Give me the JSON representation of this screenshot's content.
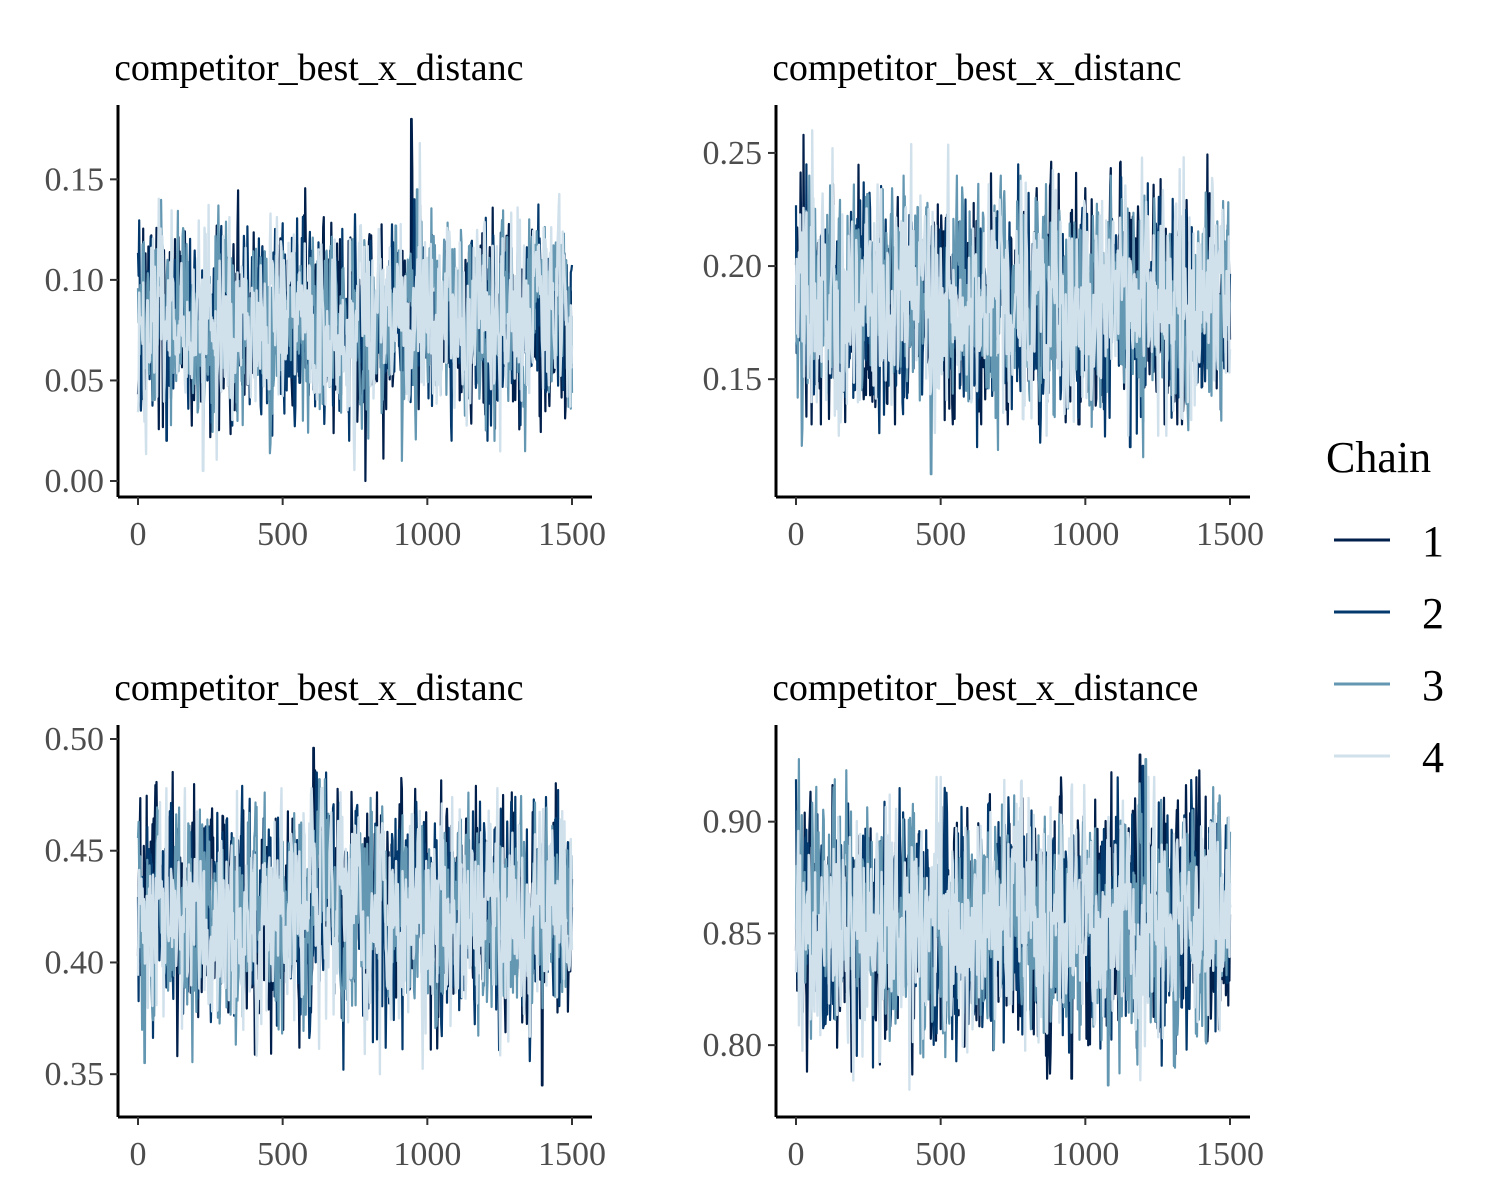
{
  "chart_data": [
    {
      "type": "line",
      "title": "competitor_best_x_distanc",
      "xlabel": "",
      "ylabel": "",
      "xlim": [
        0,
        1500
      ],
      "ylim": [
        0.0,
        0.18
      ],
      "xticks": [
        0,
        500,
        1000,
        1500
      ],
      "xtick_labels": [
        "0",
        "500",
        "1000",
        "1500"
      ],
      "yticks": [
        0.0,
        0.05,
        0.1,
        0.15
      ],
      "ytick_labels": [
        "0.00",
        "0.05",
        "0.10",
        "0.15"
      ],
      "trace_center": 0.08,
      "trace_spread": 0.022,
      "series": [
        {
          "name": "1",
          "min": 0.0,
          "max": 0.18
        },
        {
          "name": "2",
          "min": 0.02,
          "max": 0.14
        },
        {
          "name": "3",
          "min": 0.01,
          "max": 0.145
        },
        {
          "name": "4",
          "min": 0.005,
          "max": 0.168
        }
      ]
    },
    {
      "type": "line",
      "title": "competitor_best_x_distanc",
      "xlabel": "",
      "ylabel": "",
      "xlim": [
        0,
        1500
      ],
      "ylim": [
        0.105,
        0.265
      ],
      "xticks": [
        0,
        500,
        1000,
        1500
      ],
      "xtick_labels": [
        "0",
        "500",
        "1000",
        "1500"
      ],
      "yticks": [
        0.15,
        0.2,
        0.25
      ],
      "ytick_labels": [
        "0.15",
        "0.20",
        "0.25"
      ],
      "trace_center": 0.185,
      "trace_spread": 0.022,
      "series": [
        {
          "name": "1",
          "min": 0.13,
          "max": 0.258
        },
        {
          "name": "2",
          "min": 0.12,
          "max": 0.245
        },
        {
          "name": "3",
          "min": 0.108,
          "max": 0.24
        },
        {
          "name": "4",
          "min": 0.125,
          "max": 0.26
        }
      ]
    },
    {
      "type": "line",
      "title": "competitor_best_x_distanc",
      "xlabel": "",
      "ylabel": "",
      "xlim": [
        0,
        1500
      ],
      "ylim": [
        0.338,
        0.5
      ],
      "xticks": [
        0,
        500,
        1000,
        1500
      ],
      "xtick_labels": [
        "0",
        "500",
        "1000",
        "1500"
      ],
      "yticks": [
        0.35,
        0.4,
        0.45,
        0.5
      ],
      "ytick_labels": [
        "0.35",
        "0.40",
        "0.45",
        "0.50"
      ],
      "trace_center": 0.423,
      "trace_spread": 0.022,
      "series": [
        {
          "name": "1",
          "min": 0.345,
          "max": 0.496
        },
        {
          "name": "2",
          "min": 0.352,
          "max": 0.485
        },
        {
          "name": "3",
          "min": 0.355,
          "max": 0.482
        },
        {
          "name": "4",
          "min": 0.35,
          "max": 0.478
        }
      ]
    },
    {
      "type": "line",
      "title": "competitor_best_x_distance",
      "xlabel": "",
      "ylabel": "",
      "xlim": [
        0,
        1500
      ],
      "ylim": [
        0.775,
        0.937
      ],
      "xticks": [
        0,
        500,
        1000,
        1500
      ],
      "xtick_labels": [
        "0",
        "500",
        "1000",
        "1500"
      ],
      "yticks": [
        0.8,
        0.85,
        0.9
      ],
      "ytick_labels": [
        "0.80",
        "0.85",
        "0.90"
      ],
      "trace_center": 0.855,
      "trace_spread": 0.024,
      "series": [
        {
          "name": "1",
          "min": 0.785,
          "max": 0.93
        },
        {
          "name": "2",
          "min": 0.79,
          "max": 0.925
        },
        {
          "name": "3",
          "min": 0.782,
          "max": 0.928
        },
        {
          "name": "4",
          "min": 0.78,
          "max": 0.92
        }
      ]
    }
  ],
  "legend": {
    "title": "Chain",
    "placement": "right",
    "items": [
      {
        "label": "1",
        "color": "#011f4b"
      },
      {
        "label": "2",
        "color": "#03396c"
      },
      {
        "label": "3",
        "color": "#6497b1"
      },
      {
        "label": "4",
        "color": "#d1e1ec"
      }
    ]
  }
}
